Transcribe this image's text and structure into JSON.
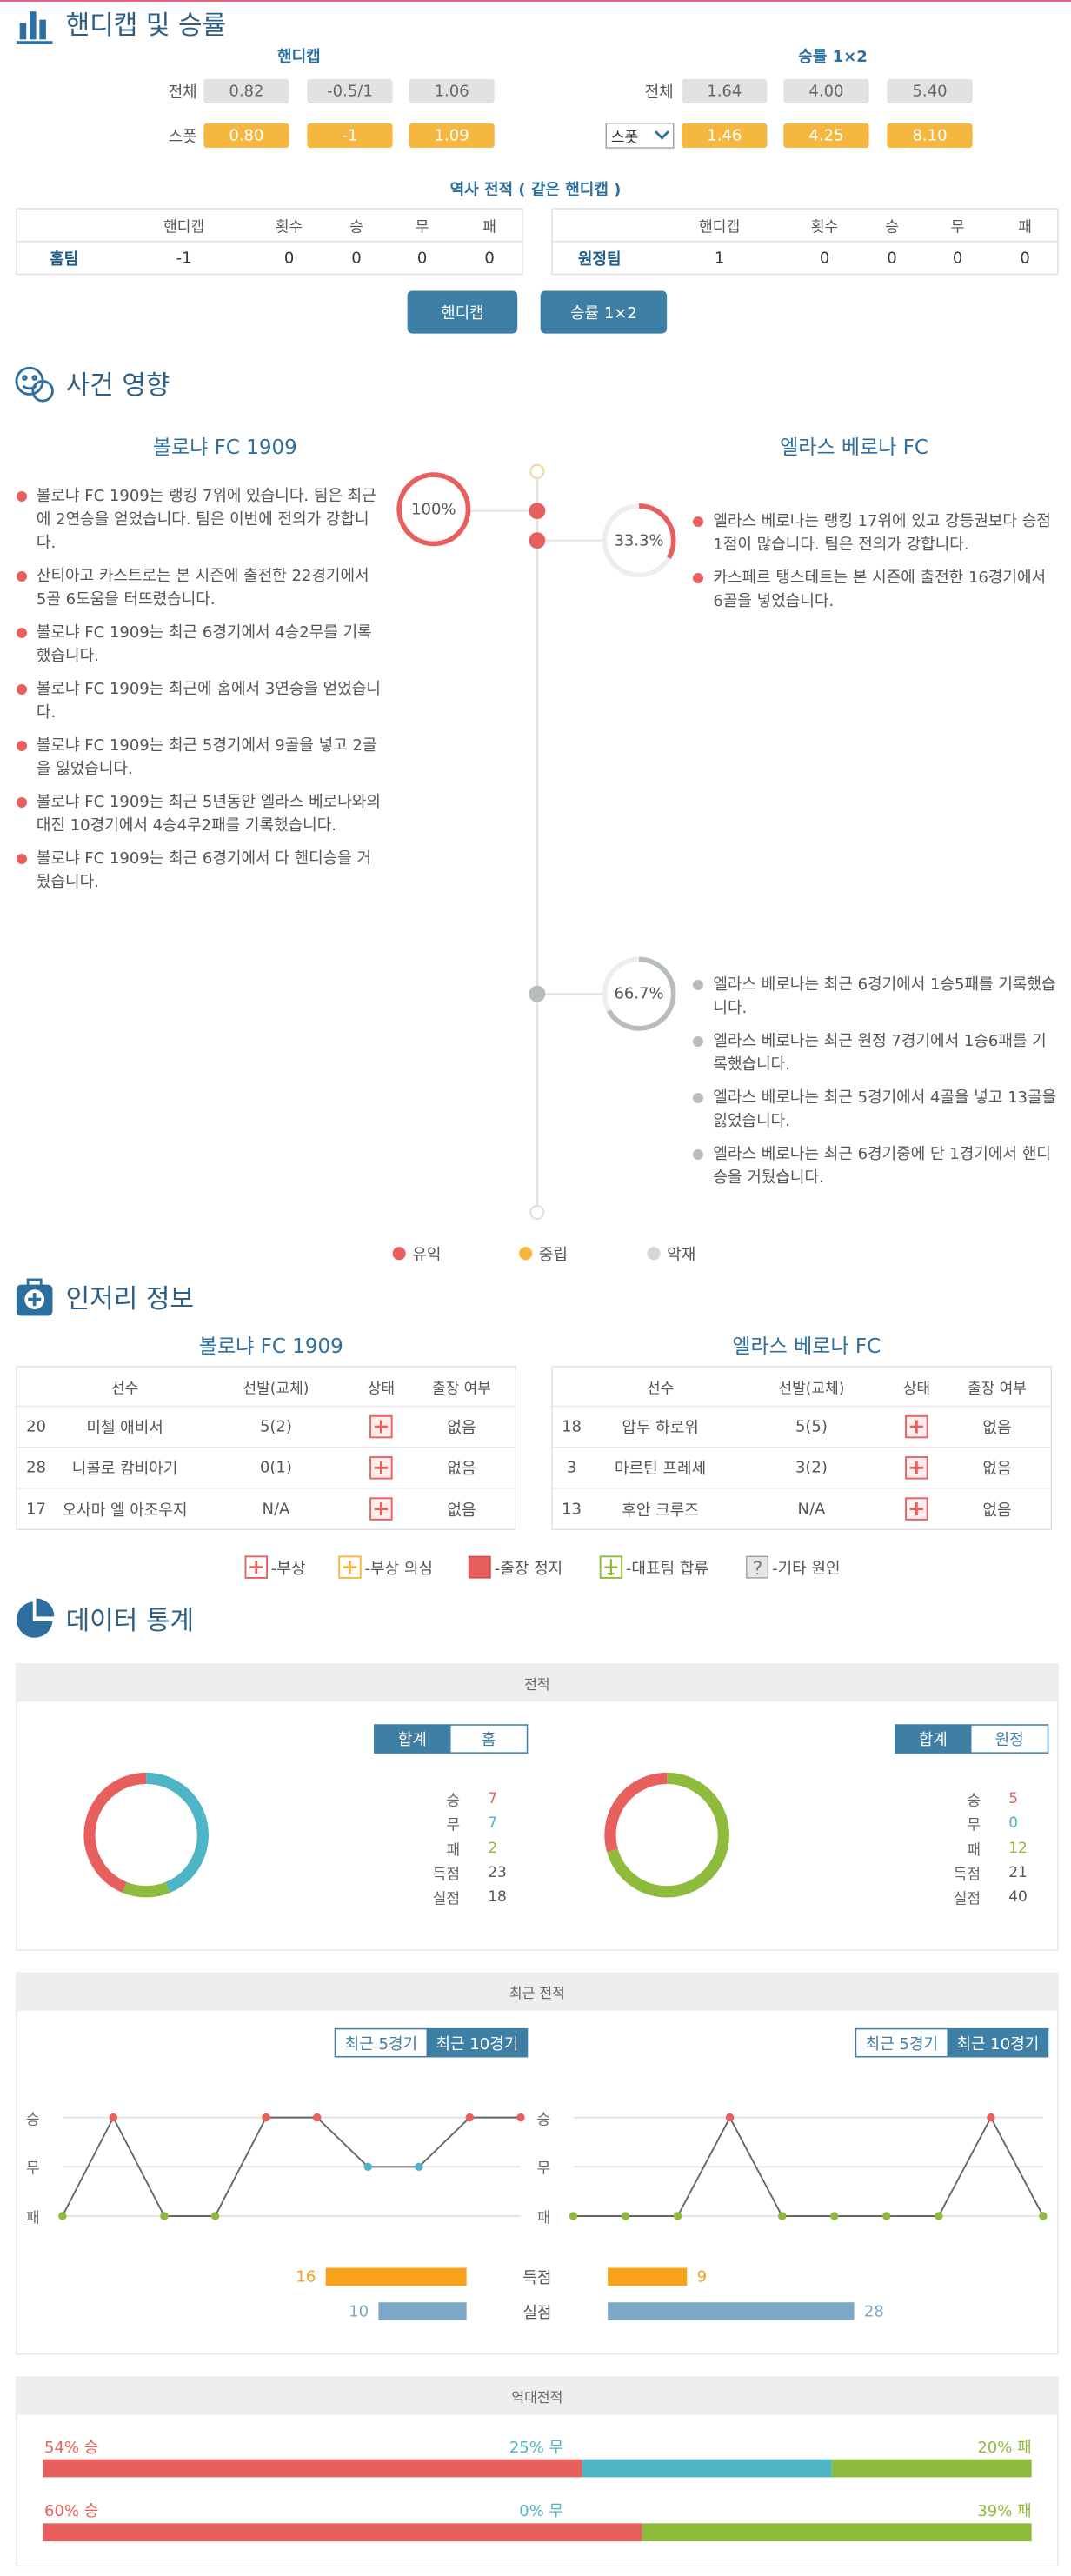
{
  "handicap": {
    "title": "핸디캡 및 승률",
    "handicap_header": "핸디캡",
    "winrate_header": "승률 1×2",
    "row_labels": [
      "전체",
      "스폿"
    ],
    "handicap_odds": [
      [
        "0.82",
        "-0.5/1",
        "1.06"
      ],
      [
        "0.80",
        "-1",
        "1.09"
      ]
    ],
    "winrate_odds": [
      [
        "1.64",
        "4.00",
        "5.40"
      ],
      [
        "1.46",
        "4.25",
        "8.10"
      ]
    ]
  },
  "history": {
    "title": "역사 전적 ( 같은 핸디캡 )",
    "columns": [
      "핸디캡",
      "횟수",
      "승",
      "무",
      "패"
    ],
    "rows": [
      {
        "team": "홈팀",
        "values": [
          -1,
          0,
          0,
          0,
          0
        ]
      },
      {
        "team": "원정팀",
        "values": [
          1,
          0,
          0,
          0,
          0
        ]
      }
    ],
    "buttons": [
      "핸디캡",
      "승률 1×2"
    ]
  },
  "impact": {
    "title": "사건 영향",
    "teams": [
      "볼로냐 FC 1909",
      "엘라스 베로나 FC"
    ],
    "groups": [
      {
        "percent": 100,
        "percent_label": "100%",
        "color": "#e8605e",
        "items": [
          "볼로냐 FC 1909는 랭킹 7위에 있습니다. 팀은 최근에 2연승을 얻었습니다. 팀은 이번에 전의가 강합니다.",
          "산티아고 카스트로는 본 시즌에 출전한 22경기에서 5골 6도움을 터뜨렸습니다.",
          "볼로냐 FC 1909는 최근 6경기에서 4승2무를 기록했습니다.",
          "볼로냐 FC 1909는 최근에 홈에서 3연승을 얻었습니다.",
          "볼로냐 FC 1909는 최근 5경기에서 9골을 넣고 2골을 잃었습니다.",
          "볼로냐 FC 1909는 최근 5년동안 엘라스 베로나와의 대진 10경기에서 4승4무2패를 기록했습니다.",
          "볼로냐 FC 1909는 최근 6경기에서 다 핸디승을 거뒀습니다."
        ]
      },
      {
        "percent": 33.3,
        "percent_label": "33.3%",
        "color": "#e8605e",
        "items": [
          "엘라스 베로나는 랭킹 17위에 있고 강등권보다 승점 1점이 많습니다. 팀은 전의가 강합니다.",
          "카스페르 탱스테트는 본 시즌에 출전한 16경기에서 6골을 넣었습니다."
        ]
      },
      {
        "percent": 66.7,
        "percent_label": "66.7%",
        "color": "#b7bcbc",
        "items": [
          "엘라스 베로나는 최근 6경기에서 1승5패를 기록했습니다.",
          "엘라스 베로나는 최근 원정 7경기에서 1승6패를 기록했습니다.",
          "엘라스 베로나는 최근 5경기에서 4골을 넣고 13골을 잃었습니다.",
          "엘라스 베로나는 최근 6경기중에 단 1경기에서 핸디승을 거뒀습니다."
        ]
      }
    ],
    "legend": [
      {
        "label": "유익",
        "color": "#e8605e"
      },
      {
        "label": "중립",
        "color": "#f5b73f"
      },
      {
        "label": "악재",
        "color": "#d6d6d6"
      }
    ]
  },
  "injury": {
    "title": "인저리 정보",
    "columns": [
      "선수",
      "선발(교체)",
      "상태",
      "출장 여부"
    ],
    "tables": [
      [
        [
          "20",
          "미첼 애비서",
          "5(2)",
          "없음"
        ],
        [
          "28",
          "니콜로 캄비아기",
          "0(1)",
          "없음"
        ],
        [
          "17",
          "오사마 엘 아조우지",
          "N/A",
          "없음"
        ]
      ],
      [
        [
          "18",
          "압두 하로위",
          "5(5)",
          "없음"
        ],
        [
          "3",
          "마르틴 프레세",
          "3(2)",
          "없음"
        ],
        [
          "13",
          "후안 크루즈",
          "N/A",
          "없음"
        ]
      ]
    ],
    "legend": [
      "-부상",
      "-부상 의심",
      "-출장 정지",
      "-대표팀 합류",
      "-기타 원인"
    ]
  },
  "stats": {
    "title": "데이터 통계",
    "record": {
      "title": "전적",
      "type": "donut",
      "tabs": [
        [
          "합계",
          "홈"
        ],
        [
          "합계",
          "원정"
        ]
      ],
      "labels": [
        "승",
        "무",
        "패",
        "득점",
        "실점"
      ],
      "values": [
        [
          7,
          7,
          2,
          23,
          18
        ],
        [
          5,
          0,
          12,
          21,
          40
        ]
      ],
      "colors": [
        "#e8605e",
        "#4db5c5",
        "#8fbb3d"
      ]
    },
    "form": {
      "title": "최근 전적",
      "type": "line",
      "tabs": [
        "최근 5경기",
        "최근 10경기"
      ],
      "ylim": [
        0,
        2
      ],
      "yticks": [
        {
          "value": 2,
          "label": "승"
        },
        {
          "value": 1,
          "label": "무"
        },
        {
          "value": 0,
          "label": "패"
        }
      ],
      "series": [
        {
          "values": [
            0,
            2,
            0,
            0,
            2,
            2,
            1,
            1,
            2,
            2
          ]
        },
        {
          "values": [
            0,
            0,
            0,
            2,
            0,
            0,
            0,
            0,
            2,
            0
          ]
        }
      ],
      "line_color": "#666666",
      "point_colors": [
        "#8fbb3d",
        "#4db5c5",
        "#e8605e"
      ]
    },
    "goals": {
      "type": "bar",
      "categories": [
        "득점",
        "실점"
      ],
      "colors": [
        "#f7a21b",
        "#7ba8c6"
      ],
      "values": [
        [
          16,
          10
        ],
        [
          9,
          28
        ]
      ]
    },
    "h2h": {
      "title": "역대전적",
      "type": "stacked_bar",
      "colors": [
        "#e8605e",
        "#4db5c5",
        "#8fbb3d"
      ],
      "rows": [
        {
          "values": [
            54,
            25,
            20
          ],
          "value_labels": [
            "54% 승",
            "25% 무",
            "20% 패"
          ]
        },
        {
          "values": [
            60,
            0,
            39
          ],
          "value_labels": [
            "60% 승",
            "0% 무",
            "39% 패"
          ]
        }
      ]
    }
  }
}
